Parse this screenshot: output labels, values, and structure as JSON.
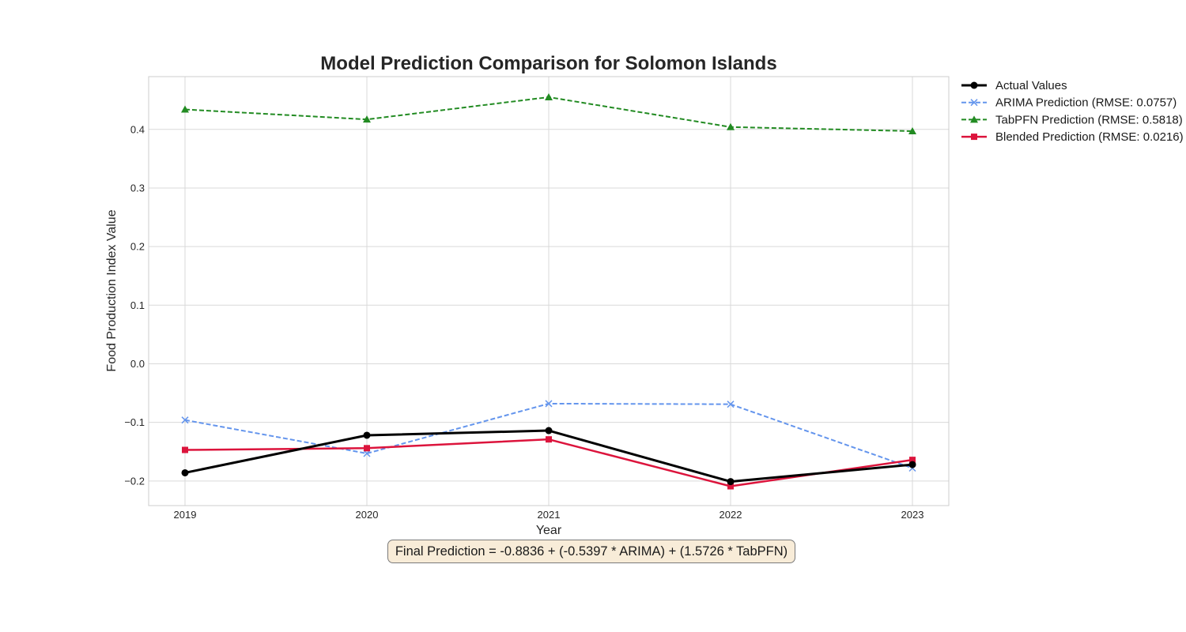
{
  "chart_data": {
    "type": "line",
    "title": "Model Prediction Comparison for Solomon Islands",
    "xlabel": "Year",
    "ylabel": "Food Production Index Value",
    "x": [
      2019,
      2020,
      2021,
      2022,
      2023
    ],
    "xlim": [
      2018.8,
      2023.2
    ],
    "ylim": [
      -0.242,
      0.49
    ],
    "yticks": [
      -0.2,
      -0.1,
      0.0,
      0.1,
      0.2,
      0.3,
      0.4
    ],
    "ytick_labels": [
      "−0.2",
      "−0.1",
      "0.0",
      "0.1",
      "0.2",
      "0.3",
      "0.4"
    ],
    "xtick_labels": [
      "2019",
      "2020",
      "2021",
      "2022",
      "2023"
    ],
    "grid": true,
    "legend_position": "outside top-right",
    "series": [
      {
        "name": "Actual Values",
        "values": [
          -0.186,
          -0.122,
          -0.114,
          -0.201,
          -0.172
        ],
        "color": "#000000",
        "linestyle": "solid",
        "marker": "circle",
        "linewidth": 3
      },
      {
        "name": "ARIMA Prediction (RMSE: 0.0757)",
        "values": [
          -0.096,
          -0.153,
          -0.068,
          -0.069,
          -0.178
        ],
        "color": "#6495ed",
        "linestyle": "dashed",
        "marker": "x",
        "linewidth": 2
      },
      {
        "name": "TabPFN Prediction (RMSE: 0.5818)",
        "values": [
          0.434,
          0.417,
          0.455,
          0.404,
          0.397
        ],
        "color": "#228b22",
        "linestyle": "dashed",
        "marker": "triangle",
        "linewidth": 2
      },
      {
        "name": "Blended Prediction (RMSE: 0.0216)",
        "values": [
          -0.147,
          -0.144,
          -0.129,
          -0.209,
          -0.164
        ],
        "color": "#dc143c",
        "linestyle": "solid",
        "marker": "square",
        "linewidth": 2.5
      }
    ],
    "annotation": "Final Prediction = -0.8836 + (-0.5397 * ARIMA) + (1.5726 * TabPFN)"
  }
}
